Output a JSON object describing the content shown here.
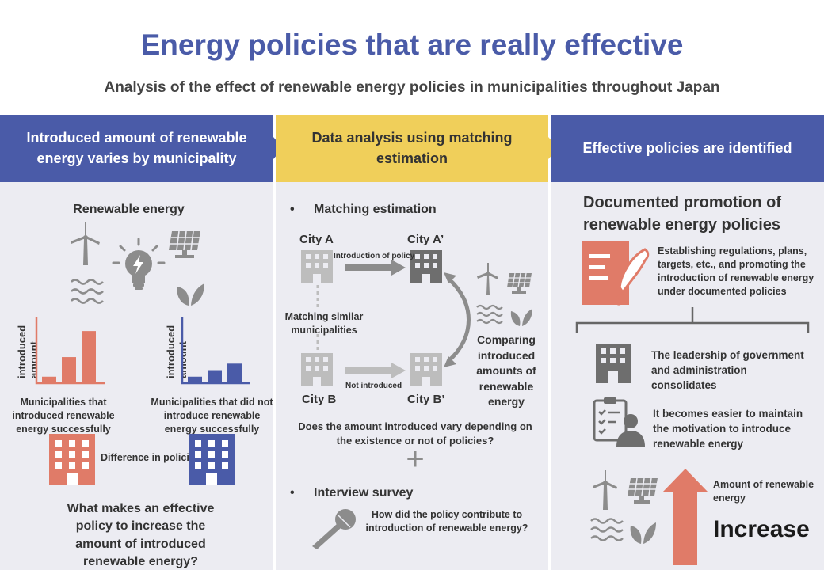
{
  "title": "Energy policies that are really effective",
  "subtitle": "Analysis of the effect of renewable energy policies in municipalities throughout Japan",
  "columns": {
    "left": {
      "header": "Introduced amount of renewable energy varies by municipality",
      "renewable_label": "Renewable energy",
      "axis_label": "introduced amount",
      "chart_success": {
        "values": [
          1,
          4,
          8
        ]
      },
      "chart_fail": {
        "values": [
          1,
          2,
          3
        ]
      },
      "caption_success": "Municipalities that introduced renewable energy successfully",
      "caption_fail": "Municipalities  that did not introduce renewable energy successfully",
      "difference_label": "Difference in policies?",
      "question": "What makes an effective policy to increase the amount of introduced renewable energy?"
    },
    "middle": {
      "header": "Data analysis using matching estimation",
      "bullet_matching": "Matching estimation",
      "city_a": "City A",
      "city_a_prime": "City A’",
      "city_b": "City B",
      "city_b_prime": "City B’",
      "arrow_top_label": "Introduction of policy",
      "arrow_bottom_label": "Not introduced",
      "matching_similar": "Matching similar municipalities",
      "comparing": "Comparing introduced amounts of renewable energy",
      "question": "Does the amount introduced vary depending on the existence or not of policies?",
      "plus": "+",
      "bullet_interview": "Interview survey",
      "interview_question": "How did the policy contribute to introduction of renewable energy?"
    },
    "right": {
      "header": "Effective policies are identified",
      "documented_title": "Documented promotion of renewable energy policies",
      "documented_desc": "Establishing regulations, plans, targets, etc., and promoting the introduction of renewable energy under documented policies",
      "leadership": "The leadership of government and administration consolidates",
      "motivation": "It becomes easier to maintain the motivation to introduce renewable energy",
      "amount_label": "Amount of renewable energy",
      "increase": "Increase"
    }
  },
  "colors": {
    "blue": "#4a5ba8",
    "yellow": "#f0cf5a",
    "salmon": "#e07b68",
    "gray_icon": "#8c8c8c",
    "panel_bg": "#ececf2"
  },
  "icons": [
    "wind-turbine-icon",
    "lightbulb-icon",
    "solar-panel-icon",
    "waves-icon",
    "sprout-icon",
    "building-icon",
    "document-pen-icon",
    "clipboard-person-icon",
    "microphone-icon",
    "up-arrow-icon"
  ]
}
